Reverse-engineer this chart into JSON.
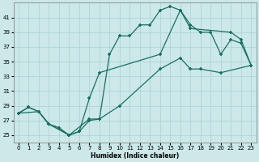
{
  "xlabel": "Humidex (Indice chaleur)",
  "xlim": [
    -0.5,
    23.5
  ],
  "ylim": [
    24,
    43
  ],
  "yticks": [
    25,
    27,
    29,
    31,
    33,
    35,
    37,
    39,
    41
  ],
  "xticks": [
    0,
    1,
    2,
    3,
    4,
    5,
    6,
    7,
    8,
    9,
    10,
    11,
    12,
    13,
    14,
    15,
    16,
    17,
    18,
    19,
    20,
    21,
    22,
    23
  ],
  "line_color": "#1a7060",
  "bg_color": "#cce8e8",
  "grid_color": "#b0d4d4",
  "line_a_x": [
    0,
    1,
    2,
    3,
    4,
    5,
    6,
    7,
    8,
    9,
    10,
    11,
    12,
    13,
    14,
    15,
    16,
    17,
    18,
    19,
    20,
    21,
    22,
    23
  ],
  "line_a_y": [
    28,
    28.8,
    28.2,
    26.5,
    26,
    25,
    25.5,
    27,
    27.2,
    36,
    38.5,
    38.5,
    40,
    40,
    42,
    42.5,
    42,
    40,
    39,
    39,
    36,
    38,
    37.5,
    34.5
  ],
  "line_b_x": [
    0,
    1,
    2,
    3,
    4,
    5,
    6,
    7,
    8,
    14,
    16,
    17,
    21,
    22,
    23
  ],
  "line_b_y": [
    28,
    28.8,
    28.2,
    26.5,
    26,
    25,
    25.5,
    30,
    33.5,
    36,
    42,
    39.5,
    39,
    38,
    34.5
  ],
  "line_c_x": [
    0,
    2,
    3,
    5,
    7,
    8,
    10,
    14,
    16,
    17,
    18,
    20,
    23
  ],
  "line_c_y": [
    28,
    28.2,
    26.5,
    25,
    27.2,
    27.2,
    29,
    34,
    35.5,
    34,
    34,
    33.5,
    34.5
  ]
}
